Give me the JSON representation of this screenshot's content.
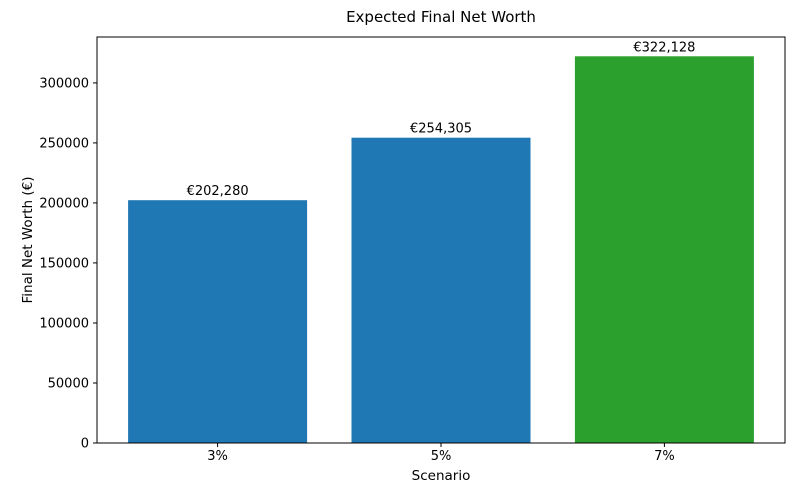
{
  "figure": {
    "background": "#ffffff"
  },
  "chart_data": {
    "type": "bar",
    "title": "Expected Final Net Worth",
    "xlabel": "Scenario",
    "ylabel": "Final Net Worth (€)",
    "categories": [
      "3%",
      "5%",
      "7%"
    ],
    "values": [
      202280,
      254305,
      322128
    ],
    "bar_labels": [
      "€202,280",
      "€254,305",
      "€322,128"
    ],
    "bar_colors": [
      "#1f77b4",
      "#1f77b4",
      "#2ca02c"
    ],
    "yticks": [
      0,
      50000,
      100000,
      150000,
      200000,
      250000,
      300000
    ],
    "ytick_labels": [
      "0",
      "50000",
      "100000",
      "150000",
      "200000",
      "250000",
      "300000"
    ],
    "ylim": [
      0,
      338234
    ],
    "grid": false,
    "legend": null,
    "text_color": "#000000",
    "spine_color": "#000000"
  }
}
